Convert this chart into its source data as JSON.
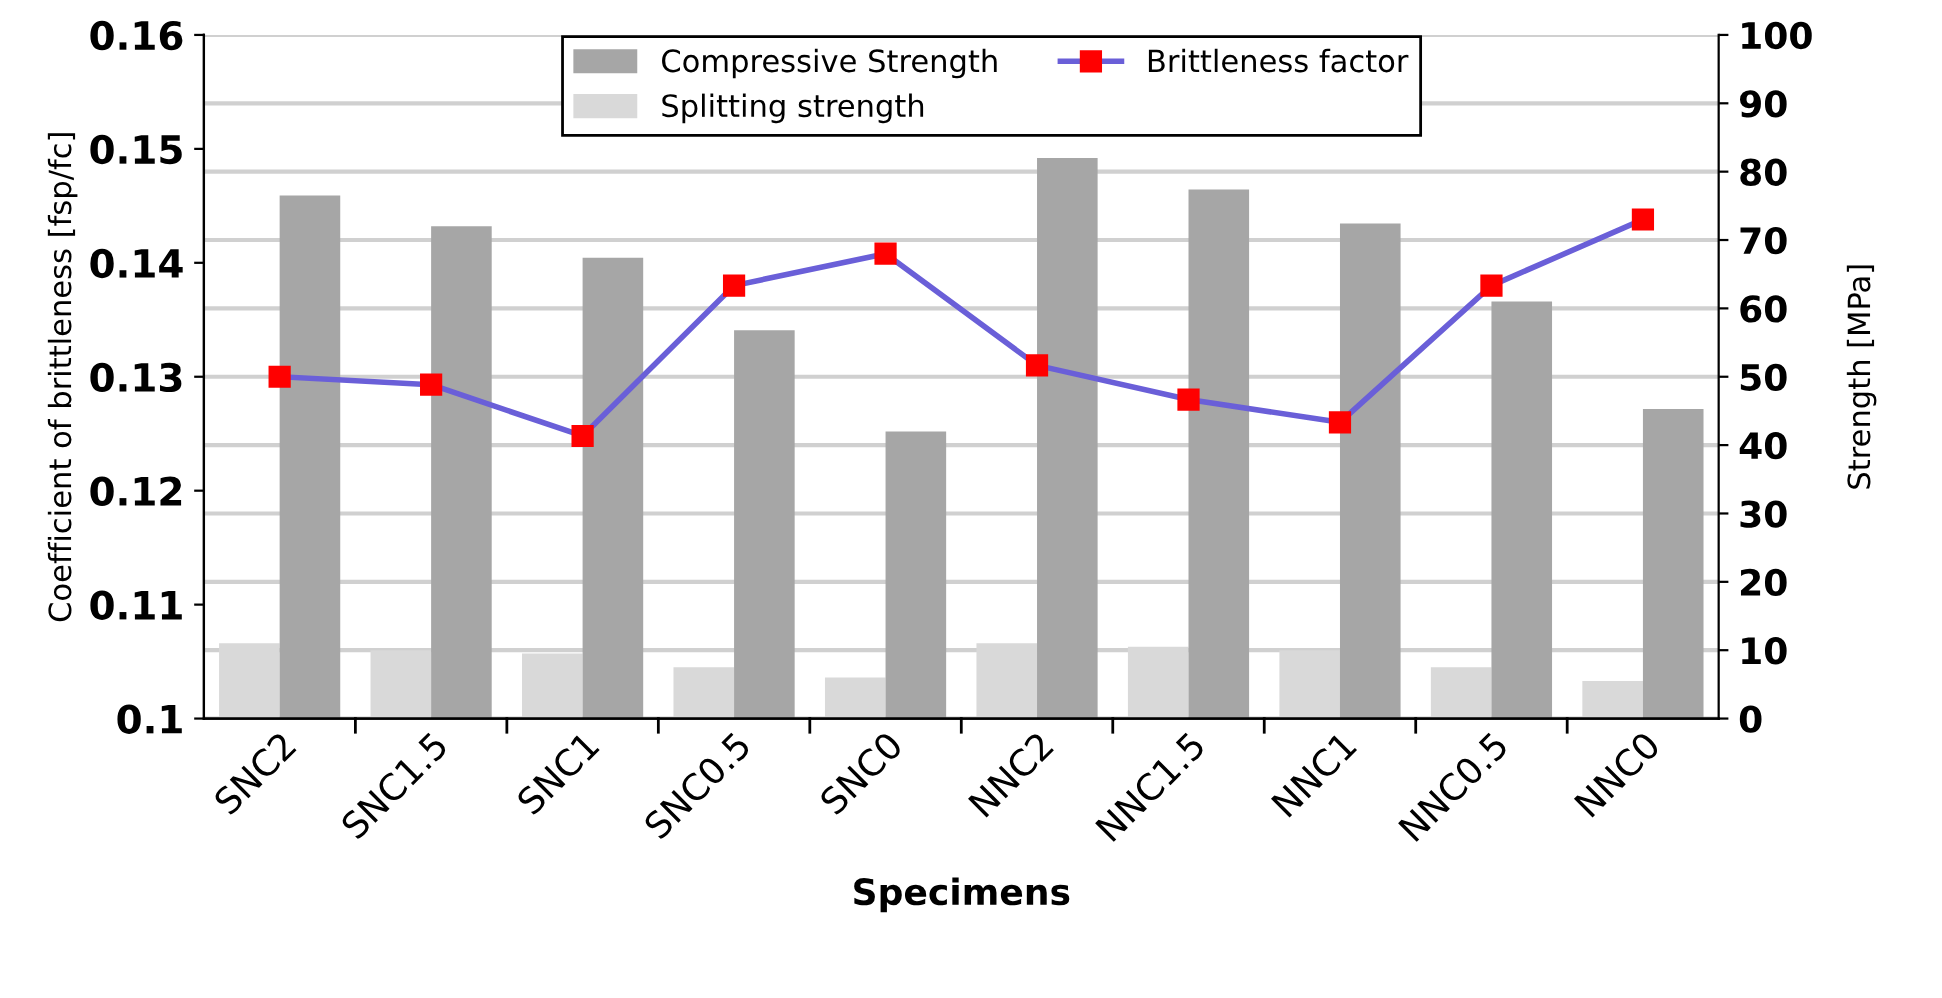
{
  "chart_data": {
    "type": "bar",
    "xlabel": "Specimens",
    "ylabel": "Coefficient of brittleness [fsp/fc]",
    "y2label": "Strength [MPa]",
    "categories": [
      "SNC2",
      "SNC1.5",
      "SNC1",
      "SNC0.5",
      "SNC0",
      "NNC2",
      "NNC1.5",
      "NNC1",
      "NNC0.5",
      "NNC0"
    ],
    "series": [
      {
        "name": "Splitting strength",
        "color": "#d9d9d9",
        "axis": "y2",
        "values": [
          11,
          10,
          9.5,
          7.5,
          6,
          11,
          10.5,
          10,
          7.5,
          5.5
        ]
      },
      {
        "name": "Compressive Strength",
        "color": "#a6a6a6",
        "axis": "y2",
        "values": [
          76.5,
          72,
          67.4,
          56.8,
          42,
          82,
          77.4,
          72.4,
          61,
          45.3
        ]
      },
      {
        "name": "Brittleness factor",
        "type": "line",
        "color": "#6a5fd8",
        "marker": "square",
        "values": [
          0.13,
          0.1293,
          0.1248,
          0.138,
          0.1408,
          0.131,
          0.128,
          0.126,
          0.138,
          0.1438
        ]
      }
    ],
    "ylim": [
      0.1,
      0.16
    ],
    "yticks": [
      0.1,
      0.11,
      0.12,
      0.13,
      0.14,
      0.15,
      0.16
    ],
    "y2lim": [
      0,
      100
    ],
    "y2ticks": [
      0,
      10,
      20,
      30,
      40,
      50,
      60,
      70,
      80,
      90,
      100
    ],
    "grid": "y",
    "legend": "top"
  }
}
